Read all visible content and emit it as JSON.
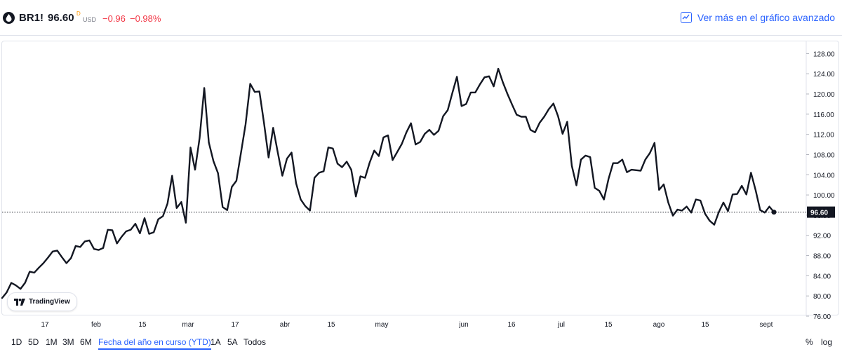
{
  "header": {
    "ticker": "BR1!",
    "price": "96.60",
    "price_flag": "D",
    "currency": "USD",
    "change": "−0.96",
    "change_pct": "−0.98%",
    "advanced_link": "Ver más en el gráfico avanzado"
  },
  "badge": {
    "label": "TradingView"
  },
  "chart_data": {
    "type": "line",
    "ylim": [
      76,
      130
    ],
    "y_ticks": [
      "76.00",
      "80.00",
      "84.00",
      "88.00",
      "92.00",
      "96.00",
      "100.00",
      "104.00",
      "108.00",
      "112.00",
      "116.00",
      "120.00",
      "124.00",
      "128.00"
    ],
    "x_ticks": [
      "17",
      "feb",
      "15",
      "mar",
      "17",
      "abr",
      "15",
      "may",
      "jun",
      "16",
      "jul",
      "15",
      "ago",
      "15",
      "sept"
    ],
    "last_value_label": "96.60",
    "last_value": 96.6,
    "line_color": "#131722",
    "values": [
      79.6,
      80.7,
      82.6,
      82.1,
      81.4,
      82.6,
      84.8,
      84.6,
      85.6,
      86.5,
      87.6,
      88.8,
      89.0,
      87.7,
      86.5,
      87.5,
      89.9,
      89.7,
      90.8,
      91.0,
      89.3,
      89.1,
      89.5,
      93.1,
      93.0,
      90.4,
      91.7,
      92.8,
      93.1,
      94.3,
      92.4,
      95.4,
      92.3,
      92.6,
      95.2,
      95.8,
      98.3,
      103.8,
      97.4,
      98.6,
      94.5,
      109.4,
      105.0,
      111.3,
      121.2,
      110.4,
      106.7,
      104.3,
      97.6,
      97.0,
      101.6,
      102.8,
      108.4,
      114.0,
      122.0,
      120.4,
      120.5,
      114.3,
      107.4,
      113.3,
      108.4,
      103.8,
      107.2,
      108.4,
      102.3,
      99.1,
      97.8,
      96.9,
      103.4,
      104.4,
      104.7,
      109.4,
      109.2,
      106.2,
      105.5,
      106.6,
      105.0,
      99.7,
      103.7,
      103.4,
      106.4,
      108.8,
      107.7,
      111.4,
      111.8,
      106.9,
      108.5,
      110.1,
      112.4,
      114.2,
      110.0,
      110.5,
      112.1,
      112.9,
      111.9,
      112.7,
      115.6,
      116.8,
      120.2,
      123.4,
      117.6,
      118.0,
      120.3,
      120.3,
      121.9,
      123.3,
      123.5,
      121.5,
      125.0,
      122.3,
      120.0,
      117.9,
      115.9,
      115.5,
      115.5,
      112.9,
      112.4,
      114.3,
      115.5,
      117.0,
      118.1,
      115.6,
      112.1,
      114.5,
      105.8,
      101.9,
      107.0,
      107.8,
      107.5,
      101.4,
      100.8,
      99.1,
      103.2,
      106.3,
      106.3,
      107.0,
      104.5,
      105.0,
      104.9,
      104.8,
      107.0,
      108.3,
      110.3,
      101.0,
      102.1,
      98.5,
      95.9,
      97.1,
      96.9,
      97.7,
      96.5,
      99.1,
      98.9,
      96.3,
      94.9,
      94.1,
      96.6,
      98.5,
      96.8,
      100.1,
      100.2,
      101.8,
      100.1,
      104.4,
      101.0,
      97.0,
      96.5,
      97.7,
      96.6
    ]
  },
  "ranges": [
    "1D",
    "5D",
    "1M",
    "3M",
    "6M",
    "Fecha del año en curso (YTD)",
    "1A",
    "5A",
    "Todos"
  ],
  "active_range": "Fecha del año en curso (YTD)",
  "toggles": {
    "percent": "%",
    "log": "log"
  }
}
